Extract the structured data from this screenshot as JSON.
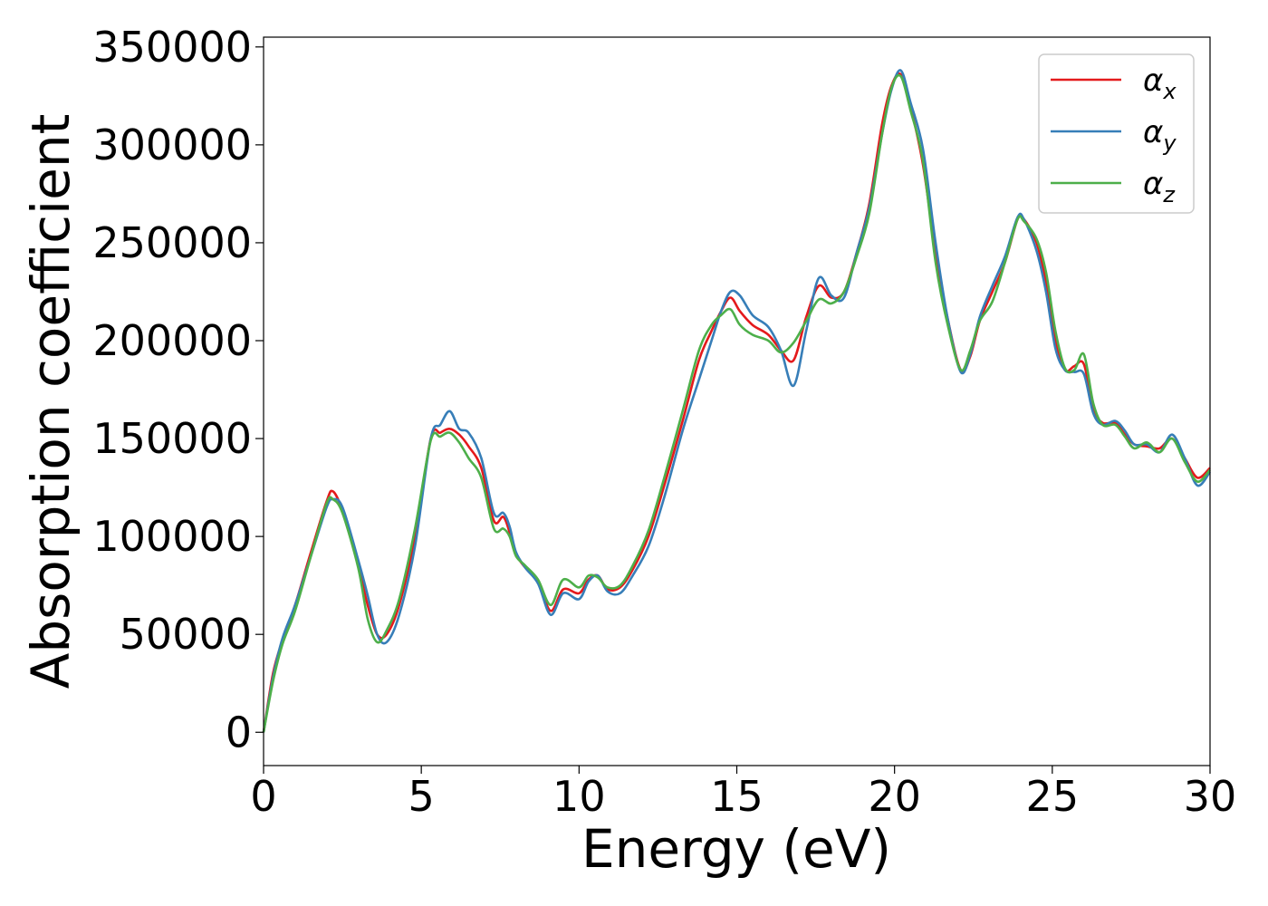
{
  "chart_data": {
    "type": "line",
    "xlabel": "Energy (eV)",
    "ylabel": "Absorption coefficient",
    "xlim": [
      0,
      30
    ],
    "ylim": [
      -17000,
      355000
    ],
    "xticks": [
      0,
      5,
      10,
      15,
      20,
      25,
      30
    ],
    "yticks": [
      0,
      50000,
      100000,
      150000,
      200000,
      250000,
      300000,
      350000
    ],
    "grid": false,
    "legend_position": "top-right",
    "x": [
      0,
      0.3,
      0.6,
      1.0,
      1.5,
      2.0,
      2.2,
      2.5,
      3.0,
      3.3,
      3.6,
      3.9,
      4.3,
      4.8,
      5.3,
      5.6,
      5.9,
      6.2,
      6.5,
      6.9,
      7.3,
      7.6,
      7.8,
      8.0,
      8.3,
      8.7,
      9.1,
      9.5,
      10.0,
      10.3,
      10.6,
      10.9,
      11.3,
      11.7,
      12.2,
      12.7,
      13.3,
      13.8,
      14.2,
      14.5,
      14.8,
      15.1,
      15.5,
      16.0,
      16.4,
      16.8,
      17.2,
      17.6,
      18.0,
      18.4,
      18.8,
      19.2,
      19.6,
      19.9,
      20.2,
      20.5,
      20.9,
      21.3,
      21.7,
      22.1,
      22.4,
      22.7,
      23.1,
      23.5,
      23.9,
      24.1,
      24.5,
      24.8,
      25.1,
      25.4,
      25.7,
      26.0,
      26.3,
      26.6,
      27.0,
      27.3,
      27.6,
      28.0,
      28.4,
      28.8,
      29.2,
      29.6,
      30.0
    ],
    "series": [
      {
        "name": "αx",
        "color": "#e41a1c",
        "values": [
          0,
          30000,
          47000,
          65000,
          92000,
          118000,
          123000,
          113000,
          85000,
          65000,
          50000,
          50000,
          65000,
          100000,
          150000,
          153000,
          155000,
          152000,
          146000,
          135000,
          108000,
          110000,
          102000,
          91000,
          84000,
          77000,
          62000,
          73000,
          71000,
          78000,
          80000,
          73000,
          74000,
          83000,
          100000,
          126000,
          160000,
          190000,
          205000,
          215000,
          222000,
          215000,
          208000,
          203000,
          195000,
          190000,
          212000,
          228000,
          222000,
          225000,
          245000,
          270000,
          310000,
          330000,
          336000,
          320000,
          290000,
          245000,
          210000,
          185000,
          192000,
          210000,
          225000,
          240000,
          262000,
          262000,
          250000,
          230000,
          200000,
          185000,
          187000,
          188000,
          165000,
          158000,
          158000,
          152000,
          147000,
          146000,
          145000,
          150000,
          140000,
          130000,
          135000
        ]
      },
      {
        "name": "αy",
        "color": "#377eb8",
        "values": [
          0,
          28000,
          48000,
          65000,
          90000,
          115000,
          119000,
          115000,
          88000,
          70000,
          50000,
          46000,
          60000,
          95000,
          150000,
          157000,
          164000,
          155000,
          153000,
          140000,
          112000,
          112000,
          105000,
          92000,
          84000,
          76000,
          60000,
          71000,
          68000,
          77000,
          80000,
          72000,
          71000,
          80000,
          95000,
          120000,
          155000,
          180000,
          200000,
          215000,
          225000,
          223000,
          213000,
          207000,
          195000,
          177000,
          205000,
          232000,
          223000,
          222000,
          245000,
          268000,
          305000,
          328000,
          338000,
          322000,
          298000,
          250000,
          210000,
          184000,
          193000,
          212000,
          228000,
          243000,
          263000,
          262000,
          246000,
          225000,
          196000,
          185000,
          184000,
          183000,
          163000,
          157000,
          159000,
          154000,
          147000,
          147000,
          143000,
          152000,
          140000,
          126000,
          133000
        ]
      },
      {
        "name": "αz",
        "color": "#4daf4a",
        "values": [
          0,
          26000,
          45000,
          62000,
          90000,
          117000,
          119000,
          112000,
          84000,
          58000,
          46000,
          52000,
          68000,
          104000,
          149000,
          151000,
          153000,
          148000,
          140000,
          130000,
          104000,
          104000,
          100000,
          90000,
          85000,
          78000,
          65000,
          78000,
          74000,
          80000,
          79000,
          74000,
          75000,
          85000,
          103000,
          130000,
          165000,
          195000,
          208000,
          213000,
          216000,
          208000,
          203000,
          200000,
          194000,
          199000,
          210000,
          221000,
          219000,
          225000,
          243000,
          265000,
          305000,
          329000,
          335000,
          318000,
          292000,
          240000,
          207000,
          185000,
          195000,
          210000,
          220000,
          240000,
          262000,
          261000,
          252000,
          235000,
          205000,
          186000,
          185000,
          193000,
          168000,
          157000,
          157000,
          151000,
          145000,
          148000,
          143000,
          150000,
          138000,
          128000,
          134000
        ]
      }
    ]
  }
}
